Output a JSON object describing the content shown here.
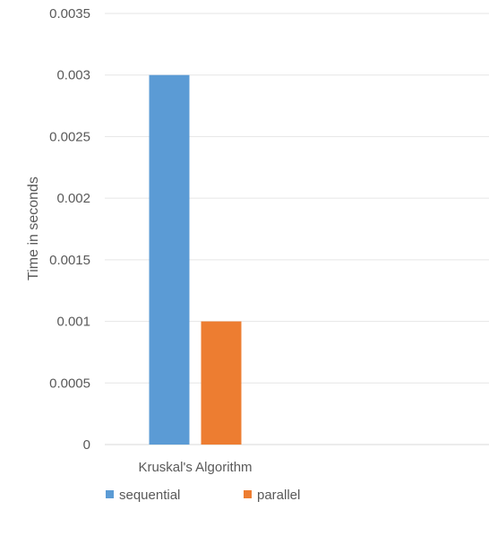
{
  "chart_data": {
    "type": "bar",
    "categories": [
      "Kruskal's Algorithm"
    ],
    "series": [
      {
        "name": "sequential",
        "values": [
          0.003
        ],
        "color": "#5B9BD5"
      },
      {
        "name": "parallel",
        "values": [
          0.001
        ],
        "color": "#ED7D31"
      }
    ],
    "title": "",
    "xlabel": "",
    "ylabel": "Time in seconds",
    "ylim": [
      0,
      0.0035
    ],
    "yticks": [
      "0",
      "0.0005",
      "0.001",
      "0.0015",
      "0.002",
      "0.0025",
      "0.003",
      "0.0035"
    ],
    "grid": true,
    "legend_position": "bottom-left"
  }
}
